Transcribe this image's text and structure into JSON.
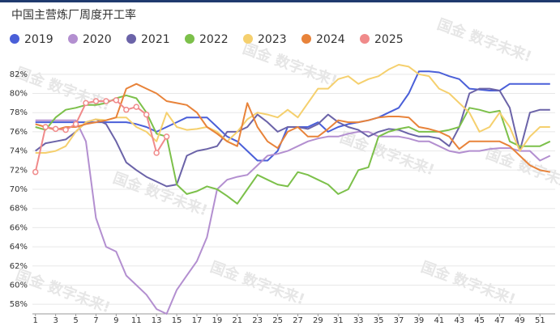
{
  "chart_data": {
    "type": "line",
    "title": "中国主营炼厂周度开工率",
    "watermark": "国金 数字未来!",
    "x": [
      1,
      2,
      3,
      4,
      5,
      6,
      7,
      8,
      9,
      10,
      11,
      12,
      13,
      14,
      15,
      16,
      17,
      18,
      19,
      20,
      21,
      22,
      23,
      24,
      25,
      26,
      27,
      28,
      29,
      30,
      31,
      32,
      33,
      34,
      35,
      36,
      37,
      38,
      39,
      40,
      41,
      42,
      43,
      44,
      45,
      46,
      47,
      48,
      49,
      50,
      51,
      52
    ],
    "xlim": [
      0.7,
      52.5
    ],
    "xticks": [
      1,
      3,
      5,
      7,
      9,
      11,
      13,
      15,
      17,
      19,
      21,
      23,
      25,
      27,
      29,
      31,
      33,
      35,
      37,
      39,
      41,
      43,
      45,
      47,
      49,
      51
    ],
    "ylim": [
      57,
      83
    ],
    "yticks": [
      {
        "value": 58,
        "label": "58%"
      },
      {
        "value": 60,
        "label": "60%"
      },
      {
        "value": 62,
        "label": "62%"
      },
      {
        "value": 64,
        "label": "64%"
      },
      {
        "value": 66,
        "label": "66%"
      },
      {
        "value": 68,
        "label": "68%"
      },
      {
        "value": 70,
        "label": "70%"
      },
      {
        "value": 72,
        "label": "72%"
      },
      {
        "value": 74,
        "label": "74%"
      },
      {
        "value": 76,
        "label": "76%"
      },
      {
        "value": 78,
        "label": "78%"
      },
      {
        "value": 80,
        "label": "80%"
      },
      {
        "value": 82,
        "label": "82%"
      }
    ],
    "grid": true,
    "legend": "top",
    "series": [
      {
        "name": "2019",
        "color": "#4a5fd8",
        "values": [
          77,
          77,
          77,
          77,
          77,
          77,
          77,
          77,
          77,
          77,
          76.8,
          76.5,
          76,
          76.5,
          77,
          77.5,
          77.5,
          77.5,
          76.5,
          75.5,
          75,
          74,
          73,
          73,
          74,
          76.5,
          76.5,
          76.5,
          77,
          76,
          76.5,
          76.8,
          77,
          77.2,
          77.5,
          78,
          78.5,
          80,
          82.3,
          82.3,
          82.2,
          81.8,
          81.5,
          80.5,
          80.4,
          80.3,
          80.3,
          81,
          81,
          81,
          81,
          81
        ]
      },
      {
        "name": "2020",
        "color": "#b38fd0",
        "values": [
          77.2,
          77.2,
          77.2,
          77.2,
          77.2,
          75,
          67,
          64,
          63.5,
          61,
          60,
          59,
          57.5,
          57,
          59.5,
          61,
          62.5,
          65,
          70,
          71,
          71.3,
          71.5,
          72.5,
          73.5,
          73.7,
          74,
          74.5,
          75,
          75.3,
          75.5,
          75.5,
          75.8,
          76,
          76,
          75.5,
          75.5,
          75.5,
          75.3,
          75,
          75,
          74.5,
          74,
          73.8,
          74,
          74,
          74.2,
          74.3,
          74.3,
          74,
          74,
          73,
          73.5
        ]
      },
      {
        "name": "2021",
        "color": "#6b63a8",
        "values": [
          74,
          74.8,
          75,
          75.2,
          76,
          77,
          77.3,
          76.8,
          75,
          72.8,
          72,
          71.3,
          70.8,
          70.3,
          70.5,
          73.5,
          74,
          74.2,
          74.5,
          76,
          76,
          76.5,
          77.8,
          77,
          76,
          76.5,
          76.5,
          76.3,
          76.8,
          77.8,
          77,
          76.5,
          76.2,
          75.5,
          76,
          76.3,
          76.2,
          75.8,
          75.5,
          75.5,
          75.3,
          74.5,
          76.5,
          80,
          80.5,
          80.5,
          80.3,
          78.5,
          74,
          78,
          78.3,
          78.3
        ]
      },
      {
        "name": "2022",
        "color": "#7cc04a",
        "values": [
          76.5,
          76.2,
          77.5,
          78.3,
          78.5,
          78.8,
          78.8,
          79,
          79.5,
          79.8,
          79.5,
          78,
          75.8,
          75.5,
          70.5,
          69.5,
          69.8,
          70.3,
          70,
          69.3,
          68.5,
          70,
          71.5,
          71,
          70.5,
          70.3,
          71.8,
          71.5,
          71,
          70.5,
          69.5,
          70,
          72,
          72.3,
          75.5,
          76,
          76.3,
          76.5,
          76,
          76,
          76,
          76.2,
          76.5,
          78.5,
          78.3,
          78,
          78.2,
          75,
          74.5,
          74.5,
          74.5,
          75
        ]
      },
      {
        "name": "2023",
        "color": "#f5d06e",
        "values": [
          73.8,
          73.8,
          74,
          74.5,
          76,
          77,
          77.3,
          77.2,
          77.5,
          77.5,
          76.5,
          76,
          75,
          78,
          76.5,
          76.2,
          76.3,
          76.5,
          76,
          75,
          76,
          77.3,
          78,
          77.8,
          77.5,
          78.3,
          77.5,
          79,
          80.5,
          80.5,
          81.5,
          81.8,
          81,
          81.5,
          81.8,
          82.5,
          83,
          82.8,
          82,
          81.8,
          80.5,
          80,
          79,
          78,
          76,
          76.5,
          78,
          76.5,
          74,
          75.5,
          76.5,
          76.5
        ]
      },
      {
        "name": "2024",
        "color": "#e8833a",
        "values": [
          76.8,
          76.5,
          76.2,
          76.5,
          76.5,
          76.8,
          77,
          77.2,
          77.5,
          80.5,
          81,
          80.5,
          80,
          79.2,
          79,
          78.8,
          78,
          76.5,
          75.8,
          75,
          74.5,
          79,
          76.5,
          75,
          74.3,
          76,
          76.5,
          75.5,
          75.5,
          76.3,
          77.2,
          77,
          77,
          77.2,
          77.5,
          77.6,
          77.6,
          77.5,
          76.5,
          76.3,
          76,
          75.5,
          74.2,
          75,
          75,
          75,
          75,
          74.5,
          73.5,
          72.5,
          72,
          71.8
        ]
      },
      {
        "name": "2025",
        "color": "#f08a8a",
        "markers": true,
        "values": [
          71.8,
          76.5,
          76.3,
          76.2,
          76.8,
          79,
          79.2,
          79.2,
          79.3,
          78.3,
          78.6,
          77.8,
          73.8,
          75.5,
          null,
          null,
          null,
          null,
          null,
          null,
          null,
          null,
          null,
          null,
          null,
          null,
          null,
          null,
          null,
          null,
          null,
          null,
          null,
          null,
          null,
          null,
          null,
          null,
          null,
          null,
          null,
          null,
          null,
          null,
          null,
          null,
          null,
          null,
          null,
          null,
          null,
          null
        ]
      }
    ]
  }
}
